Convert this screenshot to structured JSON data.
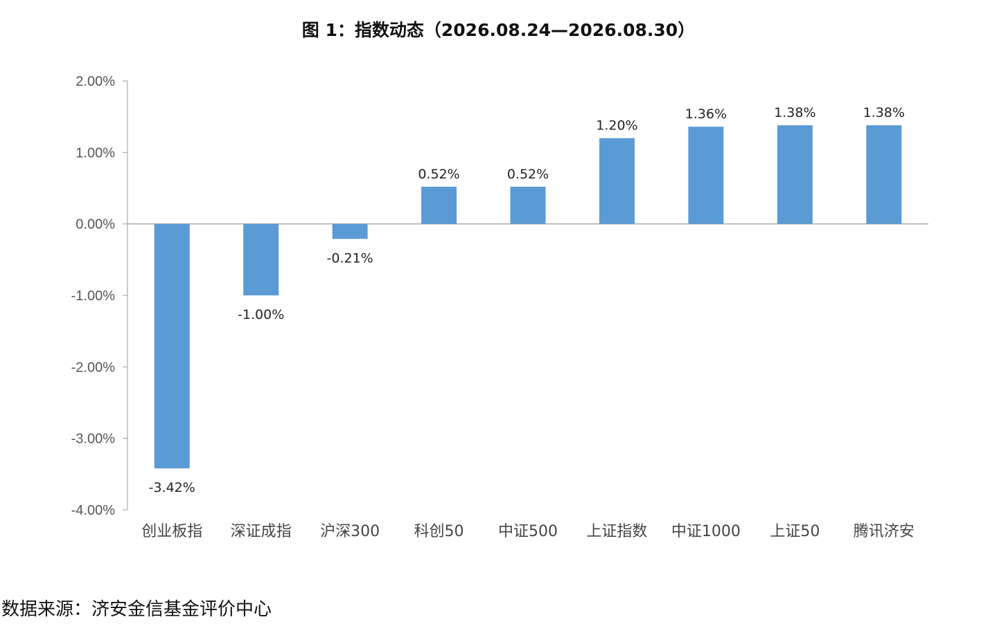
{
  "chart_data": {
    "type": "bar",
    "title": "图 1：指数动态（2026.08.24—2026.08.30）",
    "xlabel": "",
    "ylabel": "",
    "categories": [
      "创业板指",
      "深证成指",
      "沪深300",
      "科创50",
      "中证500",
      "上证指数",
      "中证1000",
      "上证50",
      "腾讯济安"
    ],
    "values": [
      -3.42,
      -1.0,
      -0.21,
      0.52,
      0.52,
      1.2,
      1.36,
      1.38,
      1.38
    ],
    "data_labels": [
      "-3.42%",
      "-1.00%",
      "-0.21%",
      "0.52%",
      "0.52%",
      "1.20%",
      "1.36%",
      "1.38%",
      "1.38%"
    ],
    "ylim": [
      -4,
      2
    ],
    "yticks": [
      2,
      1,
      0,
      -1,
      -2,
      -3,
      -4
    ],
    "ytick_labels": [
      "2.00%",
      "1.00%",
      "0.00%",
      "-1.00%",
      "-2.00%",
      "-3.00%",
      "-4.00%"
    ],
    "grid": false,
    "legend": "none",
    "bar_color": "#5B9BD5"
  },
  "source": "数据来源：济安金信基金评价中心"
}
